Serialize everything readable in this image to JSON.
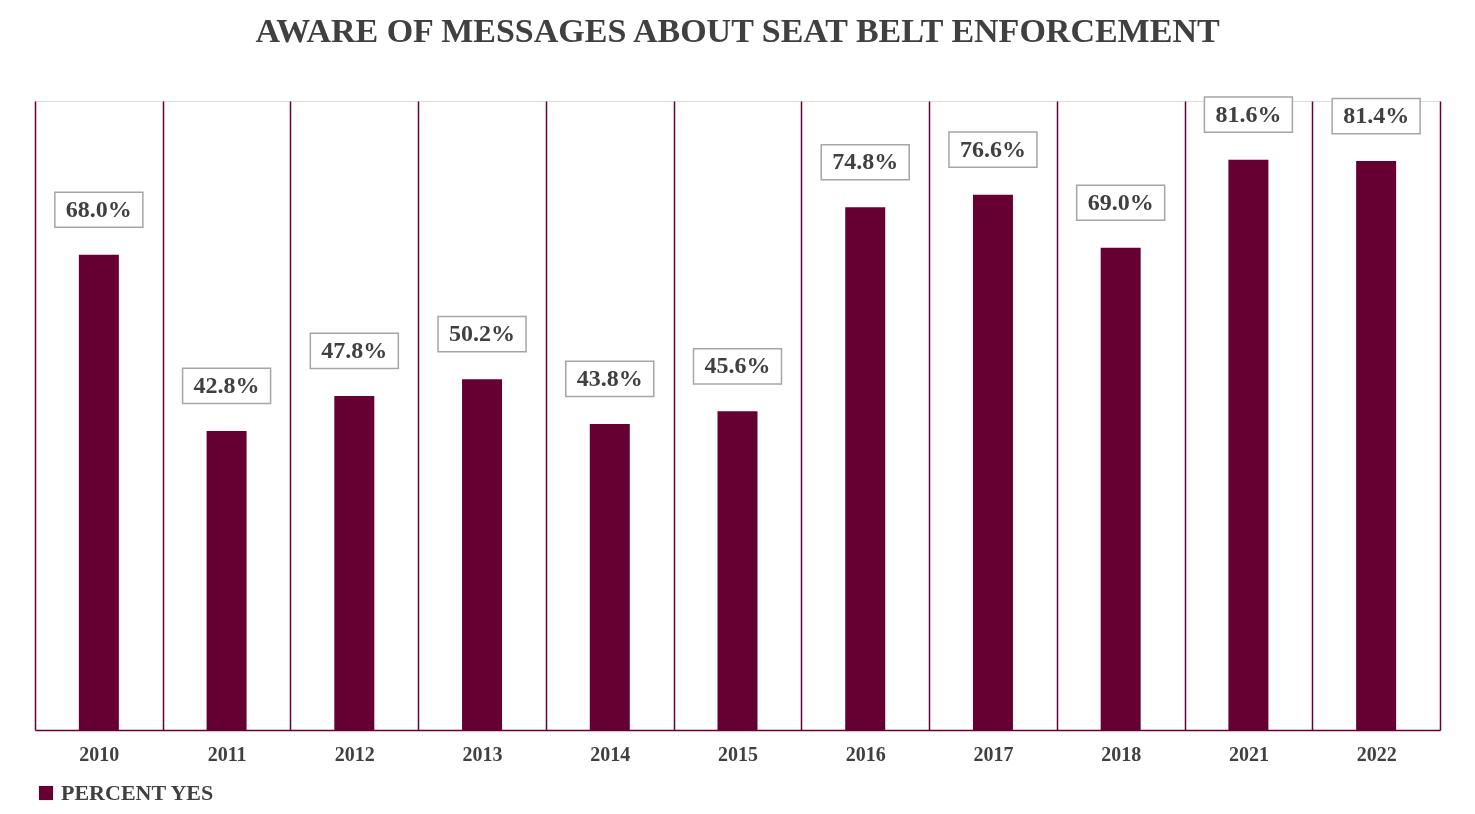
{
  "chart_data": {
    "type": "bar",
    "title": "AWARE OF MESSAGES ABOUT SEAT BELT ENFORCEMENT",
    "categories": [
      "2010",
      "2011",
      "2012",
      "2013",
      "2014",
      "2015",
      "2016",
      "2017",
      "2018",
      "2021",
      "2022"
    ],
    "series": [
      {
        "name": "PERCENT YES",
        "color": "#660033",
        "values": [
          68.0,
          42.8,
          47.8,
          50.2,
          43.8,
          45.6,
          74.8,
          76.6,
          69.0,
          81.6,
          81.4
        ],
        "value_labels": [
          "68.0%",
          "42.8%",
          "47.8%",
          "50.2%",
          "43.8%",
          "45.6%",
          "74.8%",
          "76.6%",
          "69.0%",
          "81.6%",
          "81.4%"
        ]
      }
    ],
    "ylim": [
      0,
      90
    ],
    "tick_labels": "x",
    "grid": "x",
    "legend": "bottom"
  }
}
